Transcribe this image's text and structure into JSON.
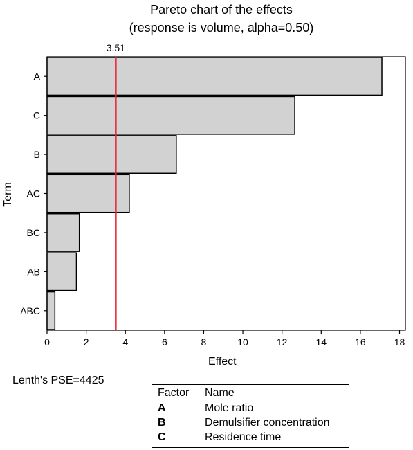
{
  "chart_data": {
    "type": "bar",
    "orientation": "horizontal",
    "title": "Pareto chart of the effects",
    "subtitle": "(response is volume, alpha=0.50)",
    "xlabel": "Effect",
    "ylabel": "Term",
    "categories": [
      "A",
      "C",
      "B",
      "AC",
      "BC",
      "AB",
      "ABC"
    ],
    "values": [
      17.1,
      12.65,
      6.6,
      4.2,
      1.65,
      1.5,
      0.4
    ],
    "xlim": [
      0,
      18.3
    ],
    "xticks": [
      0,
      2,
      4,
      6,
      8,
      10,
      12,
      14,
      16,
      18
    ],
    "reference_line": {
      "value": 3.51,
      "label": "3.51",
      "color": "#e8242a"
    },
    "bar_color": "#d2d2d2",
    "grid": false,
    "legend": "none"
  },
  "footnote": "Lenth's PSE=4425",
  "factor_table": {
    "header_factor": "Factor",
    "header_name": "Name",
    "rows": [
      {
        "factor": "A",
        "name": "Mole ratio"
      },
      {
        "factor": "B",
        "name": "Demulsifier concentration"
      },
      {
        "factor": "C",
        "name": "Residence time"
      }
    ]
  }
}
